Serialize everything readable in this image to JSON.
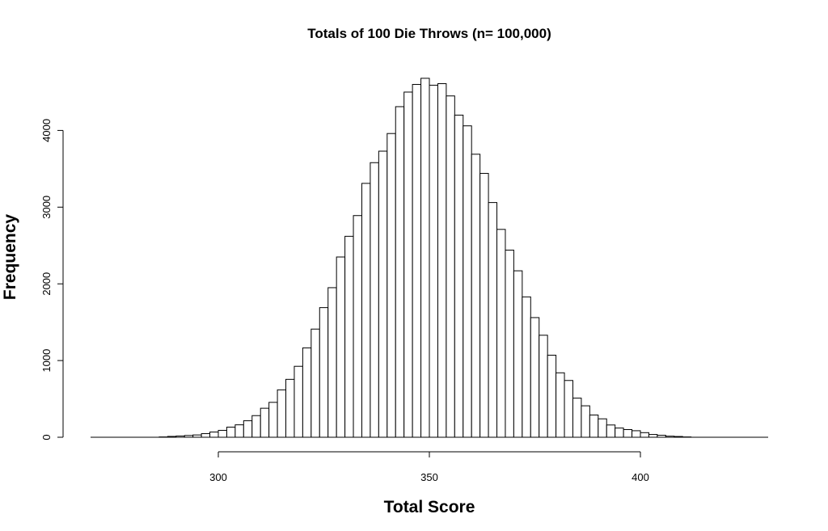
{
  "chart_data": {
    "type": "bar",
    "title": "Totals of 100 Die Throws (n= 100,000)",
    "xlabel": "Total Score",
    "ylabel": "Frequency",
    "xlim": [
      270,
      430
    ],
    "ylim": [
      0,
      4700
    ],
    "x_ticks": [
      300,
      350,
      400
    ],
    "y_ticks": [
      0,
      1000,
      2000,
      3000,
      4000
    ],
    "bin_width": 2,
    "bin_starts": [
      286,
      288,
      290,
      292,
      294,
      296,
      298,
      300,
      302,
      304,
      306,
      308,
      310,
      312,
      314,
      316,
      318,
      320,
      322,
      324,
      326,
      328,
      330,
      332,
      334,
      336,
      338,
      340,
      342,
      344,
      346,
      348,
      350,
      352,
      354,
      356,
      358,
      360,
      362,
      364,
      366,
      368,
      370,
      372,
      374,
      376,
      378,
      380,
      382,
      384,
      386,
      388,
      390,
      392,
      394,
      396,
      398,
      400,
      402,
      404,
      406,
      408,
      410
    ],
    "values": [
      4,
      11,
      16,
      23,
      30,
      47,
      68,
      90,
      132,
      162,
      215,
      282,
      378,
      455,
      618,
      755,
      925,
      1165,
      1410,
      1690,
      1950,
      2350,
      2620,
      2890,
      3310,
      3580,
      3730,
      3960,
      4310,
      4500,
      4600,
      4680,
      4590,
      4610,
      4450,
      4200,
      4060,
      3690,
      3440,
      3060,
      2710,
      2440,
      2170,
      1830,
      1560,
      1330,
      1070,
      840,
      740,
      510,
      410,
      290,
      240,
      160,
      120,
      100,
      85,
      60,
      36,
      26,
      14,
      10,
      4
    ],
    "grid": false,
    "legend": "none"
  }
}
